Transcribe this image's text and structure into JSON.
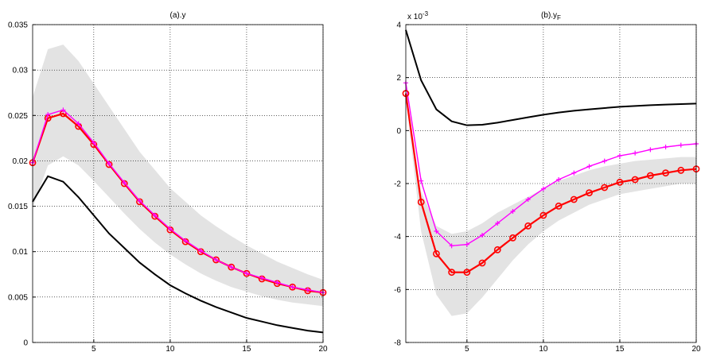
{
  "chart_data": [
    {
      "type": "line",
      "title": "(a).y",
      "x": [
        1,
        2,
        3,
        4,
        5,
        6,
        7,
        8,
        9,
        10,
        11,
        12,
        13,
        14,
        15,
        16,
        17,
        18,
        19,
        20
      ],
      "xlim": [
        1,
        20
      ],
      "xticks": [
        5,
        10,
        15,
        20
      ],
      "ylim": [
        0,
        0.035
      ],
      "yticks": [
        0,
        0.005,
        0.01,
        0.015,
        0.02,
        0.025,
        0.03,
        0.035
      ],
      "grid": true,
      "band": {
        "color": "#e3e3e3",
        "upper": [
          0.027,
          0.0323,
          0.0328,
          0.031,
          0.0285,
          0.026,
          0.0235,
          0.021,
          0.019,
          0.017,
          0.0155,
          0.014,
          0.0128,
          0.0117,
          0.0107,
          0.0098,
          0.0089,
          0.0082,
          0.0075,
          0.0069
        ],
        "lower": [
          0.0148,
          0.0195,
          0.0205,
          0.0195,
          0.0178,
          0.016,
          0.0142,
          0.0125,
          0.011,
          0.0097,
          0.0086,
          0.0076,
          0.0068,
          0.0061,
          0.0056,
          0.0051,
          0.0047,
          0.0044,
          0.0042,
          0.004
        ]
      },
      "series": [
        {
          "color": "#000000",
          "marker": "none",
          "values": [
            0.0155,
            0.0183,
            0.0177,
            0.016,
            0.014,
            0.012,
            0.0104,
            0.0088,
            0.0075,
            0.0063,
            0.0054,
            0.0046,
            0.0039,
            0.0033,
            0.0027,
            0.0023,
            0.0019,
            0.0016,
            0.0013,
            0.0011
          ]
        },
        {
          "color": "#ff0000",
          "marker": "circle",
          "values": [
            0.0198,
            0.0247,
            0.0252,
            0.0238,
            0.0218,
            0.0196,
            0.0175,
            0.0155,
            0.0139,
            0.0124,
            0.0111,
            0.01,
            0.0091,
            0.0083,
            0.0076,
            0.007,
            0.0065,
            0.0061,
            0.0057,
            0.0055
          ]
        },
        {
          "color": "#ff00ff",
          "marker": "plus",
          "values": [
            0.0198,
            0.0251,
            0.0256,
            0.0241,
            0.022,
            0.0197,
            0.0176,
            0.0156,
            0.014,
            0.0125,
            0.0112,
            0.0101,
            0.0091,
            0.0083,
            0.0076,
            0.0071,
            0.0066,
            0.0061,
            0.0058,
            0.0055
          ]
        }
      ]
    },
    {
      "type": "line",
      "title": "(b).y",
      "title_subscript": "F",
      "multiplier": "x 10",
      "multiplier_exponent": "-3",
      "x": [
        1,
        2,
        3,
        4,
        5,
        6,
        7,
        8,
        9,
        10,
        11,
        12,
        13,
        14,
        15,
        16,
        17,
        18,
        19,
        20
      ],
      "xlim": [
        1,
        20
      ],
      "xticks": [
        5,
        10,
        15,
        20
      ],
      "ylim": [
        -8,
        4
      ],
      "yticks": [
        -8,
        -6,
        -4,
        -2,
        0,
        2,
        4
      ],
      "grid": true,
      "band": {
        "color": "#e3e3e3",
        "upper": [
          1.2,
          -2.3,
          -3.6,
          -3.9,
          -3.8,
          -3.5,
          -3.1,
          -2.8,
          -2.5,
          -2.2,
          -1.9,
          -1.7,
          -1.5,
          -1.35,
          -1.25,
          -1.15,
          -1.1,
          -1.05,
          -1.0,
          -1.0
        ],
        "lower": [
          1.2,
          -3.8,
          -6.2,
          -7.0,
          -6.9,
          -6.3,
          -5.6,
          -4.9,
          -4.3,
          -3.8,
          -3.4,
          -3.1,
          -2.8,
          -2.6,
          -2.4,
          -2.3,
          -2.2,
          -2.1,
          -2.0,
          -2.0
        ]
      },
      "series": [
        {
          "color": "#000000",
          "marker": "none",
          "values": [
            3.8,
            1.9,
            0.8,
            0.35,
            0.2,
            0.22,
            0.3,
            0.4,
            0.5,
            0.6,
            0.68,
            0.75,
            0.8,
            0.85,
            0.9,
            0.93,
            0.96,
            0.98,
            1.0,
            1.02
          ]
        },
        {
          "color": "#ff00ff",
          "marker": "plus",
          "values": [
            1.8,
            -1.9,
            -3.8,
            -4.35,
            -4.3,
            -3.95,
            -3.5,
            -3.05,
            -2.6,
            -2.2,
            -1.85,
            -1.6,
            -1.35,
            -1.15,
            -0.95,
            -0.85,
            -0.72,
            -0.62,
            -0.55,
            -0.5
          ]
        },
        {
          "color": "#ff0000",
          "marker": "circle",
          "values": [
            1.4,
            -2.7,
            -4.65,
            -5.35,
            -5.35,
            -5.0,
            -4.5,
            -4.05,
            -3.6,
            -3.2,
            -2.85,
            -2.6,
            -2.35,
            -2.15,
            -1.95,
            -1.85,
            -1.7,
            -1.6,
            -1.5,
            -1.45
          ]
        }
      ]
    }
  ]
}
